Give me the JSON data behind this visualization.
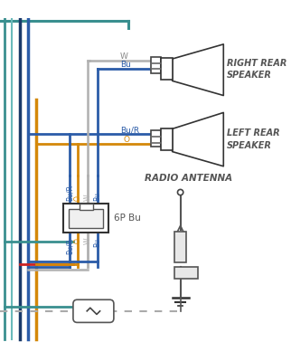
{
  "bg_color": "#ffffff",
  "wire_blue": "#2b5ca8",
  "wire_orange": "#d4880a",
  "wire_white_gray": "#b0b0b0",
  "wire_red": "#cc2222",
  "wire_teal": "#3a8f8f",
  "wire_dark_blue": "#1a3a6a",
  "text_color": "#555555",
  "right_speaker_label": "RIGHT REAR\nSPEAKER",
  "left_speaker_label": "LEFT REAR\nSPEAKER",
  "antenna_label": "RADIO ANTENNA",
  "connector_label": "6P Bu"
}
